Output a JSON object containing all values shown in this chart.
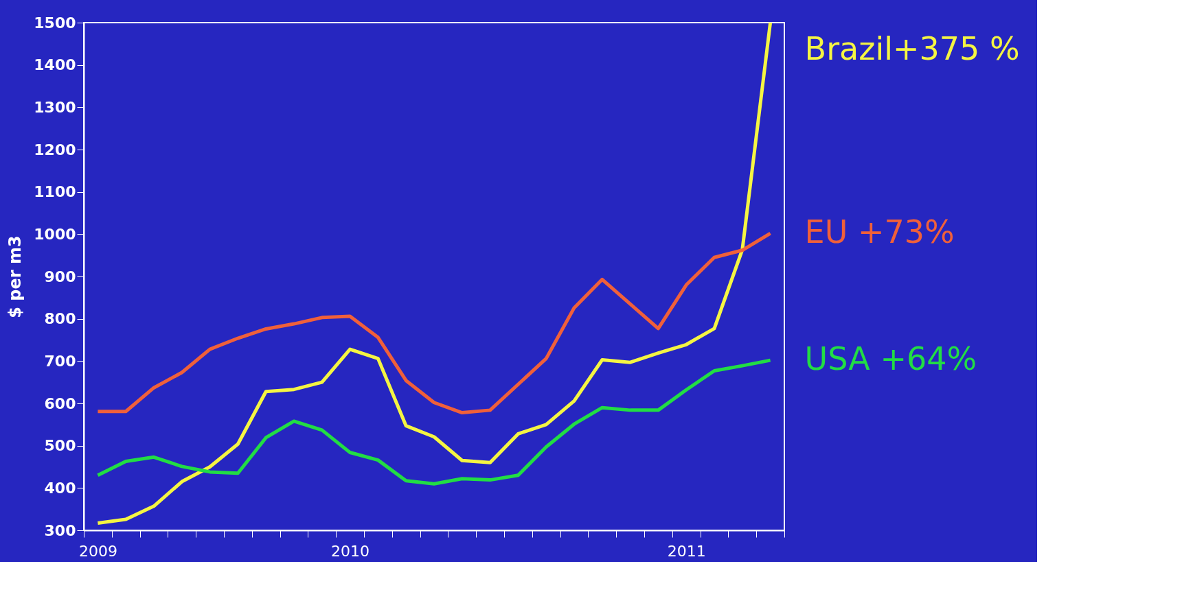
{
  "chart_data": {
    "type": "line",
    "ylabel": "$ per m3",
    "categories": [
      "2009",
      null,
      null,
      null,
      null,
      null,
      null,
      null,
      null,
      "2010",
      null,
      null,
      null,
      null,
      null,
      null,
      null,
      null,
      null,
      null,
      null,
      "2011",
      null,
      null,
      null
    ],
    "ylim": [
      300,
      1500
    ],
    "yticks": [
      300,
      400,
      500,
      600,
      700,
      800,
      900,
      1000,
      1100,
      1200,
      1300,
      1400,
      1500
    ],
    "grid": false,
    "marker": "none",
    "line_style": "solid",
    "series": [
      {
        "name": "Brazil+375  %",
        "color": "#f5f542",
        "values": [
          317,
          326,
          357,
          415,
          450,
          504,
          628,
          633,
          650,
          728,
          706,
          547,
          521,
          465,
          460,
          528,
          550,
          606,
          703,
          697,
          719,
          739,
          777,
          963,
          1500
        ]
      },
      {
        "name": "EU +73%",
        "color": "#f0603a",
        "values": [
          581,
          581,
          637,
          673,
          728,
          754,
          776,
          788,
          803,
          806,
          756,
          654,
          602,
          578,
          584,
          645,
          706,
          826,
          893,
          835,
          777,
          880,
          945,
          962,
          1002
        ]
      },
      {
        "name": "USA  +64%",
        "color": "#22dd44",
        "values": [
          430,
          463,
          473,
          451,
          438,
          435,
          519,
          558,
          537,
          484,
          466,
          417,
          410,
          422,
          419,
          430,
          497,
          551,
          590,
          584,
          584,
          632,
          677,
          689,
          702
        ]
      }
    ]
  }
}
